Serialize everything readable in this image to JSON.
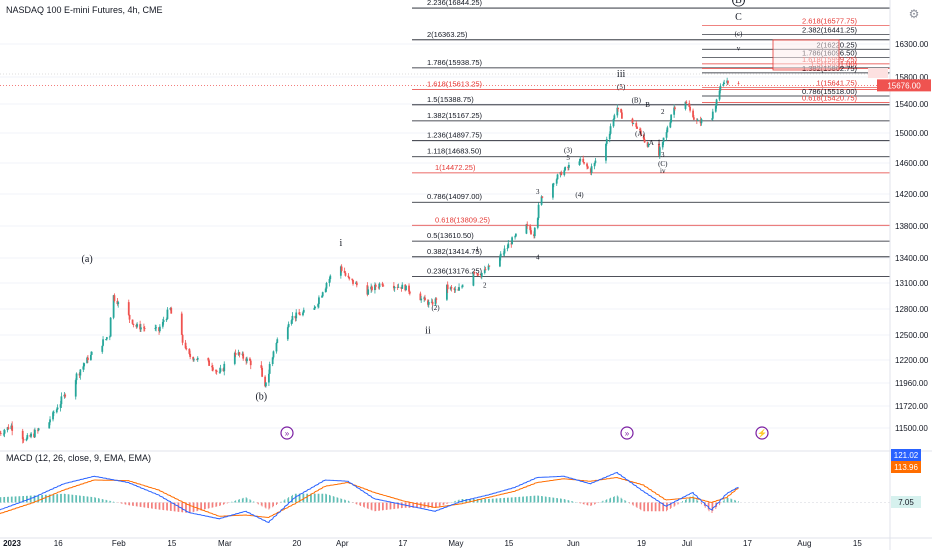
{
  "header": {
    "title": "NASDAQ 100 E-mini Futures, 4h, CME",
    "macd_label": "MACD (12, 26, close, 9, EMA, EMA)"
  },
  "colors": {
    "up": "#26a69a",
    "down": "#ef5350",
    "fib_black": "#131722",
    "fib_red": "#e53935",
    "macd": "#2962ff",
    "signal": "#ff6d00",
    "current_price": "#ef5350",
    "badge": "#7b1fa2"
  },
  "chart_data": [
    {
      "type": "candlestick",
      "title": "NASDAQ 100 E-mini Futures, 4h, CME",
      "price_axis": {
        "ticks": [
          "16300.00",
          "15800.00",
          "15400.00",
          "15000.00",
          "14600.00",
          "14200.00",
          "13800.00",
          "13400.00",
          "13100.00",
          "12800.00",
          "12500.00",
          "12200.00",
          "11960.00",
          "11720.00",
          "11500.00"
        ],
        "range": [
          11400,
          16950
        ],
        "scale": "log"
      },
      "time_axis": {
        "ticks": [
          "2023",
          "16",
          "Feb",
          "15",
          "Mar",
          "20",
          "Apr",
          "17",
          "May",
          "15",
          "Jun",
          "19",
          "Jul",
          "17",
          "Aug",
          "15"
        ]
      },
      "current_price": "15676.00",
      "price_path": [
        [
          "2023-01-03",
          11450
        ],
        [
          "2023-01-06",
          11520
        ],
        [
          "2023-01-10",
          11380
        ],
        [
          "2023-01-16",
          11560
        ],
        [
          "2023-01-20",
          11820
        ],
        [
          "2023-01-26",
          12200
        ],
        [
          "2023-02-01",
          12500
        ],
        [
          "2023-02-02",
          12950
        ],
        [
          "2023-02-08",
          12600
        ],
        [
          "2023-02-14",
          12550
        ],
        [
          "2023-02-17",
          12800
        ],
        [
          "2023-02-22",
          12250
        ],
        [
          "2023-02-28",
          12150
        ],
        [
          "2023-03-02",
          12050
        ],
        [
          "2023-03-06",
          12300
        ],
        [
          "2023-03-13",
          12100
        ],
        [
          "2023-03-14",
          11900
        ],
        [
          "2023-03-17",
          12400
        ],
        [
          "2023-03-21",
          12700
        ],
        [
          "2023-03-27",
          12800
        ],
        [
          "2023-03-31",
          13150
        ],
        [
          "2023-04-03",
          13300
        ],
        [
          "2023-04-05",
          13150
        ],
        [
          "2023-04-10",
          13000
        ],
        [
          "2023-04-14",
          13100
        ],
        [
          "2023-04-20",
          13050
        ],
        [
          "2023-04-25",
          12900
        ],
        [
          "2023-04-27",
          12850
        ],
        [
          "2023-05-01",
          13050
        ],
        [
          "2023-05-04",
          13000
        ],
        [
          "2023-05-08",
          13250
        ],
        [
          "2023-05-10",
          13200
        ],
        [
          "2023-05-15",
          13400
        ],
        [
          "2023-05-18",
          13600
        ],
        [
          "2023-05-22",
          13800
        ],
        [
          "2023-05-24",
          13700
        ],
        [
          "2023-05-26",
          14150
        ],
        [
          "2023-05-30",
          14400
        ],
        [
          "2023-06-01",
          14500
        ],
        [
          "2023-06-05",
          14650
        ],
        [
          "2023-06-08",
          14500
        ],
        [
          "2023-06-12",
          14850
        ],
        [
          "2023-06-15",
          15350
        ],
        [
          "2023-06-16",
          15250
        ],
        [
          "2023-06-20",
          15100
        ],
        [
          "2023-06-23",
          14850
        ],
        [
          "2023-06-26",
          14700
        ],
        [
          "2023-06-28",
          15000
        ],
        [
          "2023-06-30",
          15350
        ],
        [
          "2023-07-03",
          15450
        ],
        [
          "2023-07-06",
          15150
        ],
        [
          "2023-07-10",
          15200
        ],
        [
          "2023-07-12",
          15600
        ],
        [
          "2023-07-14",
          15750
        ],
        [
          "2023-07-17",
          15676
        ]
      ],
      "fib_levels_left": [
        {
          "label": "2.236(16844.25)",
          "price": 16844.25,
          "color": "black"
        },
        {
          "label": "2(16363.25)",
          "price": 16363.25,
          "color": "black"
        },
        {
          "label": "1.786(15938.75)",
          "price": 15938.75,
          "color": "black"
        },
        {
          "label": "1.618(15613.25)",
          "price": 15613.25,
          "color": "red"
        },
        {
          "label": "1.5(15388.75)",
          "price": 15388.75,
          "color": "black"
        },
        {
          "label": "1.382(15167.25)",
          "price": 15167.25,
          "color": "black"
        },
        {
          "label": "1.236(14897.75)",
          "price": 14897.75,
          "color": "black"
        },
        {
          "label": "1.118(14683.50)",
          "price": 14683.5,
          "color": "black"
        },
        {
          "label": "1(14472.25)",
          "price": 14472.25,
          "color": "red"
        },
        {
          "label": "0.786(14097.00)",
          "price": 14097.0,
          "color": "black"
        },
        {
          "label": "0.618(13809.25)",
          "price": 13809.25,
          "color": "red"
        },
        {
          "label": "0.5(13610.50)",
          "price": 13610.5,
          "color": "black"
        },
        {
          "label": "0.382(13414.75)",
          "price": 13414.75,
          "color": "black"
        },
        {
          "label": "0.236(13176.25)",
          "price": 13176.25,
          "color": "black"
        }
      ],
      "fib_levels_right": [
        {
          "label": "2.618(16577.75)",
          "price": 16577.75,
          "color": "red"
        },
        {
          "label": "2.382(16441.25)",
          "price": 16441.25,
          "color": "black"
        },
        {
          "label": "2(16220.25)",
          "price": 16220.25,
          "color": "black"
        },
        {
          "label": "1.786(16096.50)",
          "price": 16096.5,
          "color": "black"
        },
        {
          "label": "1.618(15999.25)",
          "price": 15999.25,
          "color": "red"
        },
        {
          "label": "1.5(15931.00)",
          "price": 15931.0,
          "color": "red"
        },
        {
          "label": "1.382(15862.75)",
          "price": 15862.75,
          "color": "black"
        },
        {
          "label": "1(15641.75)",
          "price": 15641.75,
          "color": "red"
        },
        {
          "label": "0.786(15518.00)",
          "price": 15518.0,
          "color": "black"
        },
        {
          "label": "0.618(15420.75)",
          "price": 15420.75,
          "color": "red"
        }
      ],
      "wave_labels": [
        {
          "text": "(a)",
          "date": "2023-01-26",
          "price": 13350
        },
        {
          "text": "(b)",
          "date": "2023-03-13",
          "price": 11790
        },
        {
          "text": "i",
          "date": "2023-04-03",
          "price": 13550
        },
        {
          "text": "ii",
          "date": "2023-04-26",
          "price": 12520
        },
        {
          "text": "(2)",
          "date": "2023-04-28",
          "price": 12790
        },
        {
          "text": "1",
          "date": "2023-05-09",
          "price": 13480
        },
        {
          "text": "2",
          "date": "2023-05-11",
          "price": 13050
        },
        {
          "text": "3",
          "date": "2023-05-25",
          "price": 14200
        },
        {
          "text": "4",
          "date": "2023-05-25",
          "price": 13380
        },
        {
          "text": "(3)",
          "date": "2023-06-02",
          "price": 14740
        },
        {
          "text": "5",
          "date": "2023-06-02",
          "price": 14640
        },
        {
          "text": "(4)",
          "date": "2023-06-05",
          "price": 14160
        },
        {
          "text": "iii",
          "date": "2023-06-16",
          "price": 15800
        },
        {
          "text": "(5)",
          "date": "2023-06-16",
          "price": 15620
        },
        {
          "text": "(B)",
          "date": "2023-06-20",
          "price": 15420
        },
        {
          "text": "B",
          "date": "2023-06-23",
          "price": 15360
        },
        {
          "text": "2",
          "date": "2023-06-27",
          "price": 15260
        },
        {
          "text": "(A)",
          "date": "2023-06-21",
          "price": 14960
        },
        {
          "text": "A",
          "date": "2023-06-24",
          "price": 14840
        },
        {
          "text": "1",
          "date": "2023-06-26",
          "price": 14850
        },
        {
          "text": "3",
          "date": "2023-06-27",
          "price": 14680
        },
        {
          "text": "(C)",
          "date": "2023-06-27",
          "price": 14560
        },
        {
          "text": "iv",
          "date": "2023-06-27",
          "price": 14470
        },
        {
          "text": "(B)",
          "date": "2023-07-17",
          "price": 16920
        },
        {
          "text": "C",
          "date": "2023-07-17",
          "price": 16660
        },
        {
          "text": "(c)",
          "date": "2023-07-17",
          "price": 16420
        },
        {
          "text": "v",
          "date": "2023-07-17",
          "price": 16200
        }
      ]
    },
    {
      "type": "line",
      "title": "MACD (12, 26, close, 9, EMA, EMA)",
      "series": [
        {
          "name": "MACD",
          "value_label": "121.02"
        },
        {
          "name": "Signal",
          "value_label": "113.96"
        },
        {
          "name": "Histogram",
          "value_label": "7.05"
        }
      ],
      "macd_path": [
        [
          "2023-01-03",
          -60
        ],
        [
          "2023-01-12",
          40
        ],
        [
          "2023-01-20",
          150
        ],
        [
          "2023-01-28",
          210
        ],
        [
          "2023-02-06",
          160
        ],
        [
          "2023-02-14",
          60
        ],
        [
          "2023-02-22",
          -80
        ],
        [
          "2023-03-02",
          -130
        ],
        [
          "2023-03-09",
          -70
        ],
        [
          "2023-03-15",
          -160
        ],
        [
          "2023-03-22",
          40
        ],
        [
          "2023-03-30",
          180
        ],
        [
          "2023-04-05",
          170
        ],
        [
          "2023-04-12",
          30
        ],
        [
          "2023-04-20",
          -20
        ],
        [
          "2023-04-28",
          -70
        ],
        [
          "2023-05-05",
          10
        ],
        [
          "2023-05-12",
          60
        ],
        [
          "2023-05-19",
          120
        ],
        [
          "2023-05-25",
          200
        ],
        [
          "2023-06-01",
          210
        ],
        [
          "2023-06-08",
          150
        ],
        [
          "2023-06-15",
          240
        ],
        [
          "2023-06-22",
          90
        ],
        [
          "2023-06-28",
          -30
        ],
        [
          "2023-07-05",
          80
        ],
        [
          "2023-07-10",
          -60
        ],
        [
          "2023-07-14",
          70
        ],
        [
          "2023-07-17",
          121
        ]
      ],
      "signal_path": [
        [
          "2023-01-03",
          -90
        ],
        [
          "2023-01-12",
          0
        ],
        [
          "2023-01-20",
          100
        ],
        [
          "2023-01-28",
          180
        ],
        [
          "2023-02-06",
          175
        ],
        [
          "2023-02-14",
          100
        ],
        [
          "2023-02-22",
          -20
        ],
        [
          "2023-03-02",
          -110
        ],
        [
          "2023-03-09",
          -100
        ],
        [
          "2023-03-15",
          -120
        ],
        [
          "2023-03-22",
          -10
        ],
        [
          "2023-03-30",
          130
        ],
        [
          "2023-04-05",
          160
        ],
        [
          "2023-04-12",
          80
        ],
        [
          "2023-04-20",
          10
        ],
        [
          "2023-04-28",
          -40
        ],
        [
          "2023-05-05",
          -10
        ],
        [
          "2023-05-12",
          40
        ],
        [
          "2023-05-19",
          90
        ],
        [
          "2023-05-25",
          160
        ],
        [
          "2023-06-01",
          190
        ],
        [
          "2023-06-08",
          170
        ],
        [
          "2023-06-15",
          200
        ],
        [
          "2023-06-22",
          140
        ],
        [
          "2023-06-28",
          20
        ],
        [
          "2023-07-05",
          40
        ],
        [
          "2023-07-10",
          0
        ],
        [
          "2023-07-14",
          40
        ],
        [
          "2023-07-17",
          114
        ]
      ]
    }
  ]
}
